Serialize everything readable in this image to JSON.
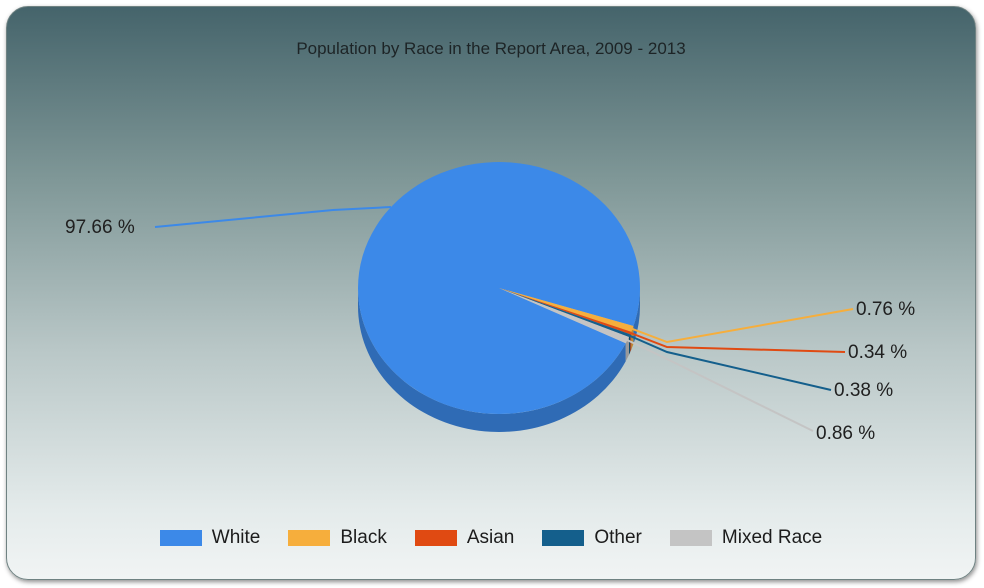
{
  "chart_data": {
    "type": "pie",
    "title": "Population by Race in the Report Area, 2009 - 2013",
    "slices": [
      {
        "name": "White",
        "value": 97.66,
        "label": "97.66 %",
        "color": "#3c89e8"
      },
      {
        "name": "Black",
        "value": 0.76,
        "label": "0.76 %",
        "color": "#f6ae3c"
      },
      {
        "name": "Asian",
        "value": 0.34,
        "label": "0.34 %",
        "color": "#e04a12"
      },
      {
        "name": "Other",
        "value": 0.38,
        "label": "0.38 %",
        "color": "#145f8c"
      },
      {
        "name": "Mixed Race",
        "value": 0.86,
        "label": "0.86 %",
        "color": "#c4c4c4"
      }
    ],
    "legend_position": "bottom",
    "style": "3d"
  }
}
